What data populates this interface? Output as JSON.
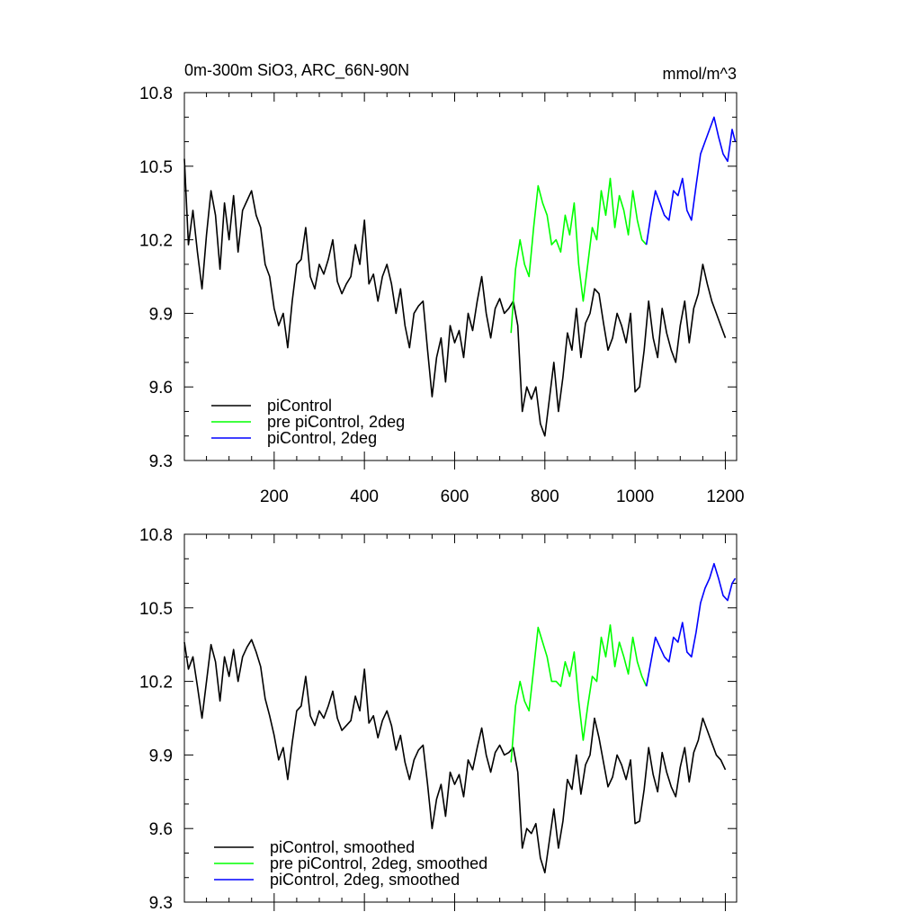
{
  "figure": {
    "title_left": "0m-300m SiO3, ARC_66N-90N",
    "title_right": "mmol/m^3"
  },
  "chart_data": [
    {
      "type": "line",
      "title": "0m-300m SiO3, ARC_66N-90N",
      "units": "mmol/m^3",
      "xlabel": "",
      "ylabel": "",
      "xlim": [
        1,
        1225
      ],
      "ylim": [
        9.3,
        10.8
      ],
      "xticks": [
        200,
        400,
        600,
        800,
        1000,
        1200
      ],
      "yticks": [
        9.3,
        9.6,
        9.9,
        10.2,
        10.5,
        10.8
      ],
      "ytick_labels": [
        "9.3",
        "9.6",
        "9.9",
        "10.2",
        "10.5",
        "10.8"
      ],
      "xtick_labels": [
        "200",
        "400",
        "600",
        "800",
        "1000",
        "1200"
      ],
      "legend_position": "bottom-left",
      "grid": false,
      "series": [
        {
          "name": "piControl",
          "color": "#000000",
          "x": [
            1,
            10,
            20,
            30,
            40,
            50,
            60,
            70,
            80,
            90,
            100,
            110,
            120,
            130,
            140,
            150,
            160,
            170,
            180,
            190,
            200,
            210,
            220,
            230,
            240,
            250,
            260,
            270,
            280,
            290,
            300,
            310,
            320,
            330,
            340,
            350,
            360,
            370,
            380,
            390,
            400,
            410,
            420,
            430,
            440,
            450,
            460,
            470,
            480,
            490,
            500,
            510,
            520,
            530,
            540,
            550,
            560,
            570,
            580,
            590,
            600,
            610,
            620,
            630,
            640,
            650,
            660,
            670,
            680,
            690,
            700,
            710,
            720,
            730,
            740,
            750,
            760,
            770,
            780,
            790,
            800,
            810,
            820,
            830,
            840,
            850,
            860,
            870,
            880,
            890,
            900,
            910,
            920,
            930,
            940,
            950,
            960,
            970,
            980,
            990,
            1000,
            1010,
            1020,
            1030,
            1040,
            1050,
            1060,
            1070,
            1080,
            1090,
            1100,
            1110,
            1120,
            1130,
            1140,
            1150,
            1160,
            1170,
            1180,
            1190,
            1200
          ],
          "y": [
            10.53,
            10.18,
            10.32,
            10.15,
            10.0,
            10.22,
            10.4,
            10.3,
            10.08,
            10.35,
            10.2,
            10.38,
            10.15,
            10.32,
            10.36,
            10.4,
            10.3,
            10.25,
            10.1,
            10.05,
            9.92,
            9.85,
            9.9,
            9.76,
            9.95,
            10.1,
            10.12,
            10.25,
            10.05,
            10.0,
            10.1,
            10.06,
            10.12,
            10.2,
            10.03,
            9.98,
            10.02,
            10.05,
            10.18,
            10.1,
            10.28,
            10.02,
            10.06,
            9.95,
            10.05,
            10.1,
            10.02,
            9.9,
            10.0,
            9.85,
            9.76,
            9.9,
            9.93,
            9.95,
            9.75,
            9.56,
            9.72,
            9.8,
            9.62,
            9.85,
            9.78,
            9.83,
            9.72,
            9.9,
            9.83,
            9.95,
            10.05,
            9.9,
            9.8,
            9.92,
            9.96,
            9.9,
            9.92,
            9.95,
            9.85,
            9.5,
            9.6,
            9.55,
            9.6,
            9.45,
            9.4,
            9.55,
            9.7,
            9.5,
            9.64,
            9.82,
            9.75,
            9.92,
            9.72,
            9.86,
            9.9,
            10.0,
            9.98,
            9.86,
            9.75,
            9.8,
            9.9,
            9.85,
            9.78,
            9.9,
            9.58,
            9.6,
            9.75,
            9.95,
            9.8,
            9.72,
            9.92,
            9.82,
            9.75,
            9.7,
            9.85,
            9.95,
            9.78,
            9.92,
            9.98,
            10.1,
            10.02,
            9.95,
            9.9,
            9.85,
            9.8
          ]
        },
        {
          "name": "pre piControl, 2deg",
          "color": "#00ff00",
          "x": [
            725,
            735,
            745,
            755,
            765,
            775,
            785,
            795,
            805,
            815,
            825,
            835,
            845,
            855,
            865,
            875,
            885,
            895,
            905,
            915,
            925,
            935,
            945,
            955,
            965,
            975,
            985,
            995,
            1005,
            1015,
            1025
          ],
          "y": [
            9.82,
            10.08,
            10.2,
            10.1,
            10.05,
            10.25,
            10.42,
            10.35,
            10.3,
            10.18,
            10.2,
            10.15,
            10.3,
            10.22,
            10.35,
            10.1,
            9.95,
            10.1,
            10.25,
            10.2,
            10.4,
            10.3,
            10.45,
            10.25,
            10.38,
            10.32,
            10.22,
            10.4,
            10.28,
            10.2,
            10.18
          ]
        },
        {
          "name": "piControl, 2deg",
          "color": "#0000ff",
          "x": [
            1025,
            1035,
            1045,
            1055,
            1065,
            1075,
            1085,
            1095,
            1105,
            1115,
            1125,
            1135,
            1145,
            1155,
            1165,
            1175,
            1185,
            1195,
            1205,
            1215,
            1222
          ],
          "y": [
            10.18,
            10.3,
            10.4,
            10.35,
            10.3,
            10.28,
            10.4,
            10.38,
            10.45,
            10.32,
            10.28,
            10.42,
            10.55,
            10.6,
            10.65,
            10.7,
            10.62,
            10.55,
            10.52,
            10.65,
            10.6
          ]
        }
      ]
    },
    {
      "type": "line",
      "title": "",
      "xlim": [
        1,
        1225
      ],
      "ylim": [
        9.3,
        10.8
      ],
      "xticks": [
        200,
        400,
        600,
        800,
        1000,
        1200
      ],
      "yticks": [
        9.3,
        9.6,
        9.9,
        10.2,
        10.5,
        10.8
      ],
      "ytick_labels": [
        "9.3",
        "9.6",
        "9.9",
        "10.2",
        "10.5",
        "10.8"
      ],
      "xtick_labels": [],
      "legend_position": "bottom-left",
      "grid": false,
      "series": [
        {
          "name": "piControl, smoothed",
          "color": "#000000",
          "x": [
            1,
            10,
            20,
            30,
            40,
            50,
            60,
            70,
            80,
            90,
            100,
            110,
            120,
            130,
            140,
            150,
            160,
            170,
            180,
            190,
            200,
            210,
            220,
            230,
            240,
            250,
            260,
            270,
            280,
            290,
            300,
            310,
            320,
            330,
            340,
            350,
            360,
            370,
            380,
            390,
            400,
            410,
            420,
            430,
            440,
            450,
            460,
            470,
            480,
            490,
            500,
            510,
            520,
            530,
            540,
            550,
            560,
            570,
            580,
            590,
            600,
            610,
            620,
            630,
            640,
            650,
            660,
            670,
            680,
            690,
            700,
            710,
            720,
            730,
            740,
            750,
            760,
            770,
            780,
            790,
            800,
            810,
            820,
            830,
            840,
            850,
            860,
            870,
            880,
            890,
            900,
            910,
            920,
            930,
            940,
            950,
            960,
            970,
            980,
            990,
            1000,
            1010,
            1020,
            1030,
            1040,
            1050,
            1060,
            1070,
            1080,
            1090,
            1100,
            1110,
            1120,
            1130,
            1140,
            1150,
            1160,
            1170,
            1180,
            1190,
            1200
          ],
          "y": [
            10.36,
            10.25,
            10.3,
            10.18,
            10.05,
            10.2,
            10.35,
            10.28,
            10.12,
            10.3,
            10.22,
            10.33,
            10.2,
            10.3,
            10.34,
            10.37,
            10.32,
            10.26,
            10.13,
            10.06,
            9.98,
            9.88,
            9.93,
            9.8,
            9.95,
            10.08,
            10.1,
            10.22,
            10.06,
            10.02,
            10.08,
            10.05,
            10.1,
            10.16,
            10.05,
            10.0,
            10.02,
            10.04,
            10.14,
            10.08,
            10.25,
            10.03,
            10.06,
            9.97,
            10.04,
            10.08,
            10.02,
            9.92,
            9.98,
            9.87,
            9.8,
            9.88,
            9.92,
            9.94,
            9.78,
            9.6,
            9.72,
            9.78,
            9.65,
            9.83,
            9.78,
            9.82,
            9.73,
            9.88,
            9.84,
            9.93,
            10.01,
            9.9,
            9.83,
            9.91,
            9.94,
            9.9,
            9.91,
            9.93,
            9.83,
            9.52,
            9.6,
            9.58,
            9.62,
            9.48,
            9.42,
            9.55,
            9.68,
            9.52,
            9.63,
            9.8,
            9.76,
            9.9,
            9.74,
            9.86,
            9.9,
            10.05,
            9.97,
            9.87,
            9.77,
            9.81,
            9.9,
            9.86,
            9.8,
            9.88,
            9.62,
            9.63,
            9.76,
            9.93,
            9.82,
            9.75,
            9.91,
            9.83,
            9.77,
            9.73,
            9.85,
            9.93,
            9.79,
            9.91,
            9.96,
            10.05,
            10.0,
            9.95,
            9.9,
            9.88,
            9.84
          ]
        },
        {
          "name": "pre piControl, 2deg, smoothed",
          "color": "#00ff00",
          "x": [
            725,
            735,
            745,
            755,
            765,
            775,
            785,
            795,
            805,
            815,
            825,
            835,
            845,
            855,
            865,
            875,
            885,
            895,
            905,
            915,
            925,
            935,
            945,
            955,
            965,
            975,
            985,
            995,
            1005,
            1015,
            1025
          ],
          "y": [
            9.87,
            10.1,
            10.2,
            10.12,
            10.08,
            10.25,
            10.42,
            10.36,
            10.3,
            10.2,
            10.2,
            10.18,
            10.28,
            10.22,
            10.32,
            10.12,
            9.96,
            10.1,
            10.22,
            10.2,
            10.38,
            10.3,
            10.43,
            10.26,
            10.36,
            10.3,
            10.23,
            10.38,
            10.28,
            10.22,
            10.18
          ]
        },
        {
          "name": "piControl, 2deg, smoothed",
          "color": "#0000ff",
          "x": [
            1025,
            1035,
            1045,
            1055,
            1065,
            1075,
            1085,
            1095,
            1105,
            1115,
            1125,
            1135,
            1145,
            1155,
            1165,
            1175,
            1185,
            1195,
            1205,
            1215,
            1222
          ],
          "y": [
            10.18,
            10.28,
            10.38,
            10.34,
            10.3,
            10.28,
            10.38,
            10.36,
            10.44,
            10.32,
            10.3,
            10.4,
            10.52,
            10.58,
            10.62,
            10.68,
            10.62,
            10.55,
            10.53,
            10.6,
            10.62
          ]
        }
      ]
    }
  ]
}
